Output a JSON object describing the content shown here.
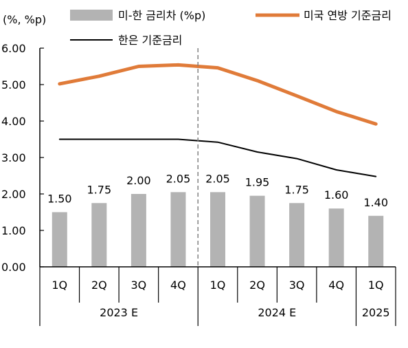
{
  "chart_data": {
    "type": "bar",
    "unit_label": "(%, %p)",
    "categories": [
      "1Q",
      "2Q",
      "3Q",
      "4Q",
      "1Q",
      "2Q",
      "3Q",
      "4Q",
      "1Q"
    ],
    "groups": [
      {
        "label": "2023 E",
        "count": 4
      },
      {
        "label": "2024 E",
        "count": 4
      },
      {
        "label": "2025",
        "count": 1
      }
    ],
    "ylim": [
      0,
      6
    ],
    "yticks": [
      "0.00",
      "1.00",
      "2.00",
      "3.00",
      "4.00",
      "5.00",
      "6.00"
    ],
    "series": [
      {
        "name": "미-한 금리차 (%p)",
        "kind": "bar",
        "color": "#b3b3b3",
        "values": [
          1.5,
          1.75,
          2.0,
          2.05,
          2.05,
          1.95,
          1.75,
          1.6,
          1.4
        ],
        "labels": [
          "1.50",
          "1.75",
          "2.00",
          "2.05",
          "2.05",
          "1.95",
          "1.75",
          "1.60",
          "1.40"
        ]
      },
      {
        "name": "미국 연방 기준금리",
        "kind": "line",
        "color": "#e07b39",
        "values": [
          5.02,
          5.23,
          5.5,
          5.54,
          5.46,
          5.11,
          4.69,
          4.26,
          3.92
        ]
      },
      {
        "name": "한은 기준금리",
        "kind": "line",
        "color": "#000000",
        "values": [
          3.5,
          3.5,
          3.5,
          3.5,
          3.42,
          3.15,
          2.97,
          2.66,
          2.48
        ]
      }
    ],
    "divider_after_index": 3,
    "grid": false,
    "legend_position": "top"
  }
}
